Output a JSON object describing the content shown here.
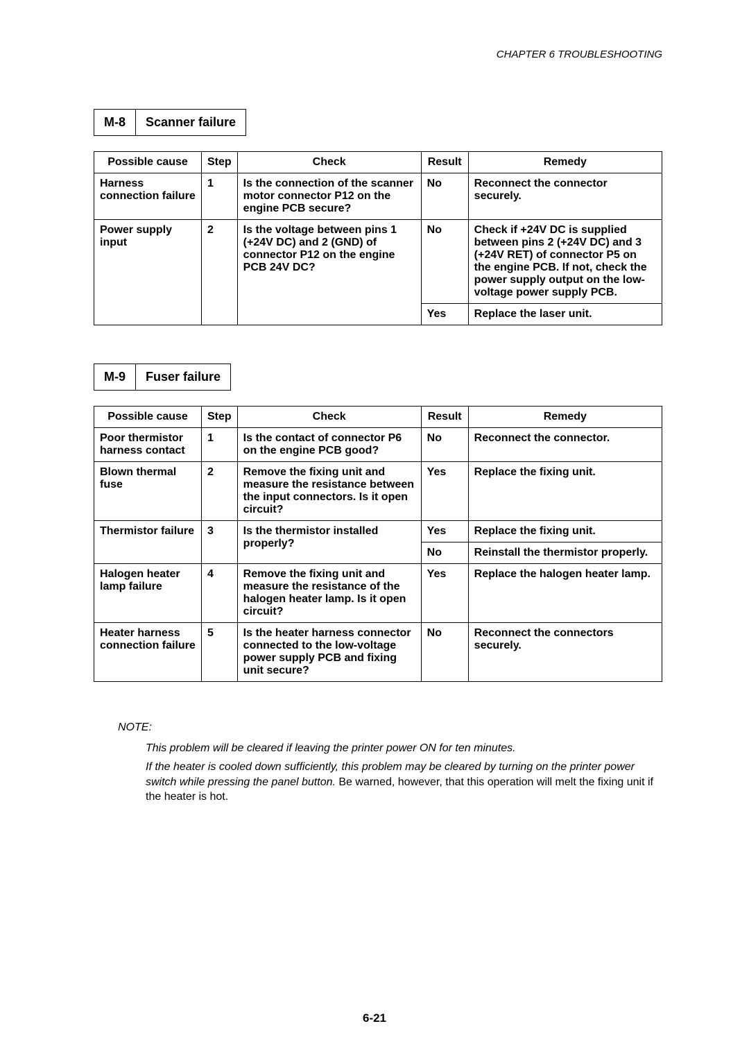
{
  "chapter": "CHAPTER 6  TROUBLESHOOTING",
  "section1": {
    "code": "M-8",
    "title": "Scanner failure",
    "headers": {
      "c0": "Possible cause",
      "c1": "Step",
      "c2": "Check",
      "c3": "Result",
      "c4": "Remedy"
    },
    "rows": [
      {
        "cause": "Harness connection failure",
        "step": "1",
        "check": "Is the connection of the scanner motor connector P12 on the engine PCB secure?",
        "results": [
          {
            "result": "No",
            "remedy": "Reconnect the connector securely."
          }
        ]
      },
      {
        "cause": "Power supply input",
        "step": "2",
        "check": "Is the voltage between pins 1 (+24V DC) and 2 (GND) of connector P12 on the engine PCB 24V DC?",
        "results": [
          {
            "result": "No",
            "remedy": "Check if +24V DC is supplied between pins 2 (+24V DC) and 3 (+24V RET) of connector P5 on the engine PCB.  If not, check the power supply output on the low-voltage power supply PCB."
          },
          {
            "result": "Yes",
            "remedy": "Replace the laser unit."
          }
        ]
      }
    ]
  },
  "section2": {
    "code": "M-9",
    "title": "Fuser failure",
    "headers": {
      "c0": "Possible cause",
      "c1": "Step",
      "c2": "Check",
      "c3": "Result",
      "c4": "Remedy"
    },
    "rows": [
      {
        "cause": "Poor thermistor harness contact",
        "step": "1",
        "check": "Is the contact of connector P6 on the engine PCB good?",
        "results": [
          {
            "result": "No",
            "remedy": "Reconnect the connector."
          }
        ]
      },
      {
        "cause": "Blown thermal fuse",
        "step": "2",
        "check": "Remove the fixing unit and measure the resistance between the input connectors. Is it open circuit?",
        "results": [
          {
            "result": "Yes",
            "remedy": "Replace the fixing unit."
          }
        ]
      },
      {
        "cause": "Thermistor failure",
        "step": "3",
        "check": "Is the thermistor installed properly?",
        "results": [
          {
            "result": "Yes",
            "remedy": "Replace the fixing unit."
          },
          {
            "result": "No",
            "remedy": "Reinstall the thermistor properly."
          }
        ]
      },
      {
        "cause": "Halogen heater lamp failure",
        "step": "4",
        "check": "Remove the fixing unit and measure the resistance of the halogen heater lamp.  Is it open circuit?",
        "results": [
          {
            "result": "Yes",
            "remedy": "Replace the halogen heater lamp."
          }
        ]
      },
      {
        "cause": "Heater harness connection failure",
        "step": "5",
        "check": "Is the heater harness connector connected to the low-voltage power supply PCB and fixing unit secure?",
        "results": [
          {
            "result": "No",
            "remedy": "Reconnect the connectors securely."
          }
        ]
      }
    ]
  },
  "note": {
    "label": "NOTE:",
    "p1": "This problem will be cleared if leaving the printer power ON for ten minutes.",
    "p2a": "If the heater is cooled down sufficiently, this problem may be cleared by turning on the printer power switch while pressing the panel button.",
    "p2b": "  Be warned, however, that this operation will melt the fixing unit if the heater is hot."
  },
  "footer": "6-21"
}
